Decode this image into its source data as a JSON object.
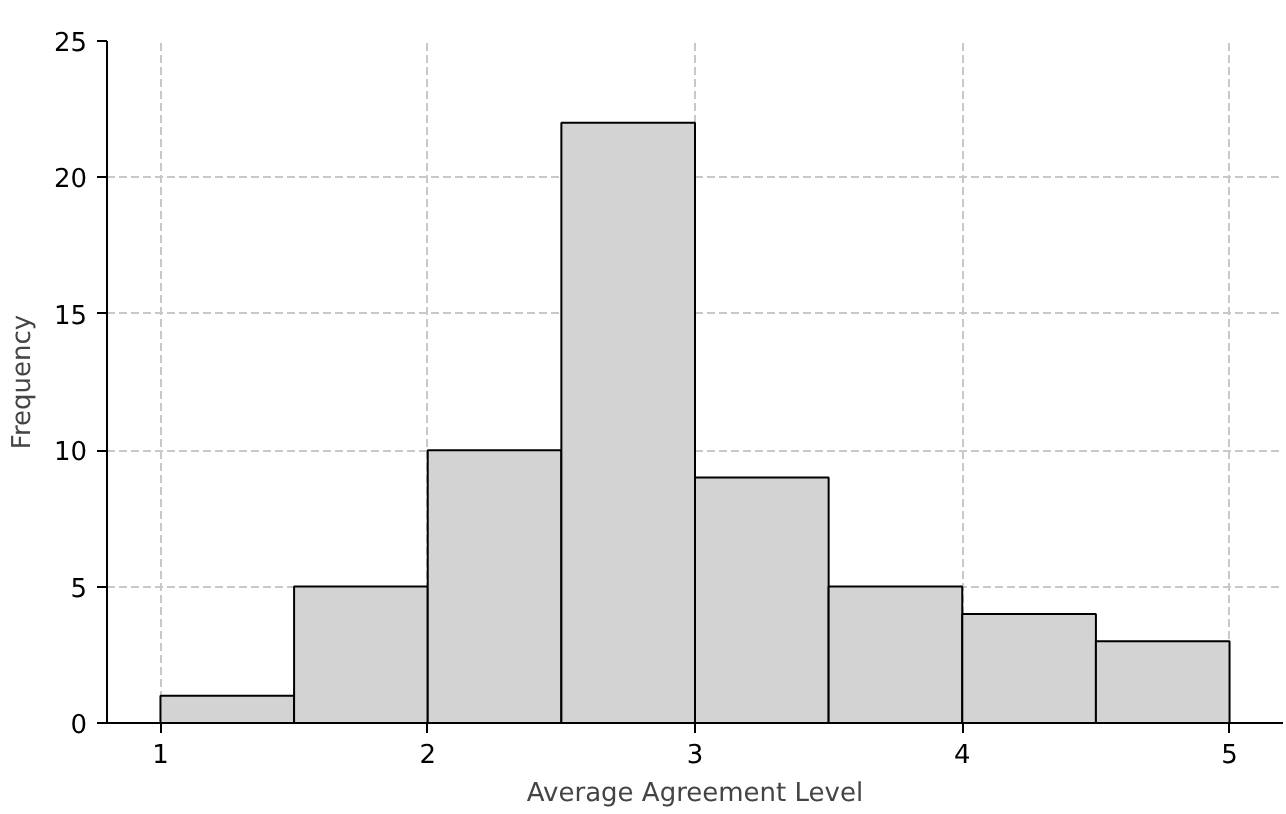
{
  "chart_data": {
    "type": "histogram",
    "xlabel": "Average Agreement Level",
    "ylabel": "Frequency",
    "bins": [
      1,
      1.5,
      2,
      2.5,
      3,
      3.5,
      4,
      4.5,
      5
    ],
    "values": [
      1,
      5,
      10,
      22,
      9,
      5,
      4,
      3
    ],
    "color": "#d3d3d3",
    "xlim": [
      0.8,
      5.2
    ],
    "xticks": [
      1,
      2,
      3,
      4,
      5
    ],
    "ylim": [
      0,
      25
    ],
    "yticks": [
      0,
      5,
      10,
      15,
      20,
      25
    ],
    "grid": true
  }
}
